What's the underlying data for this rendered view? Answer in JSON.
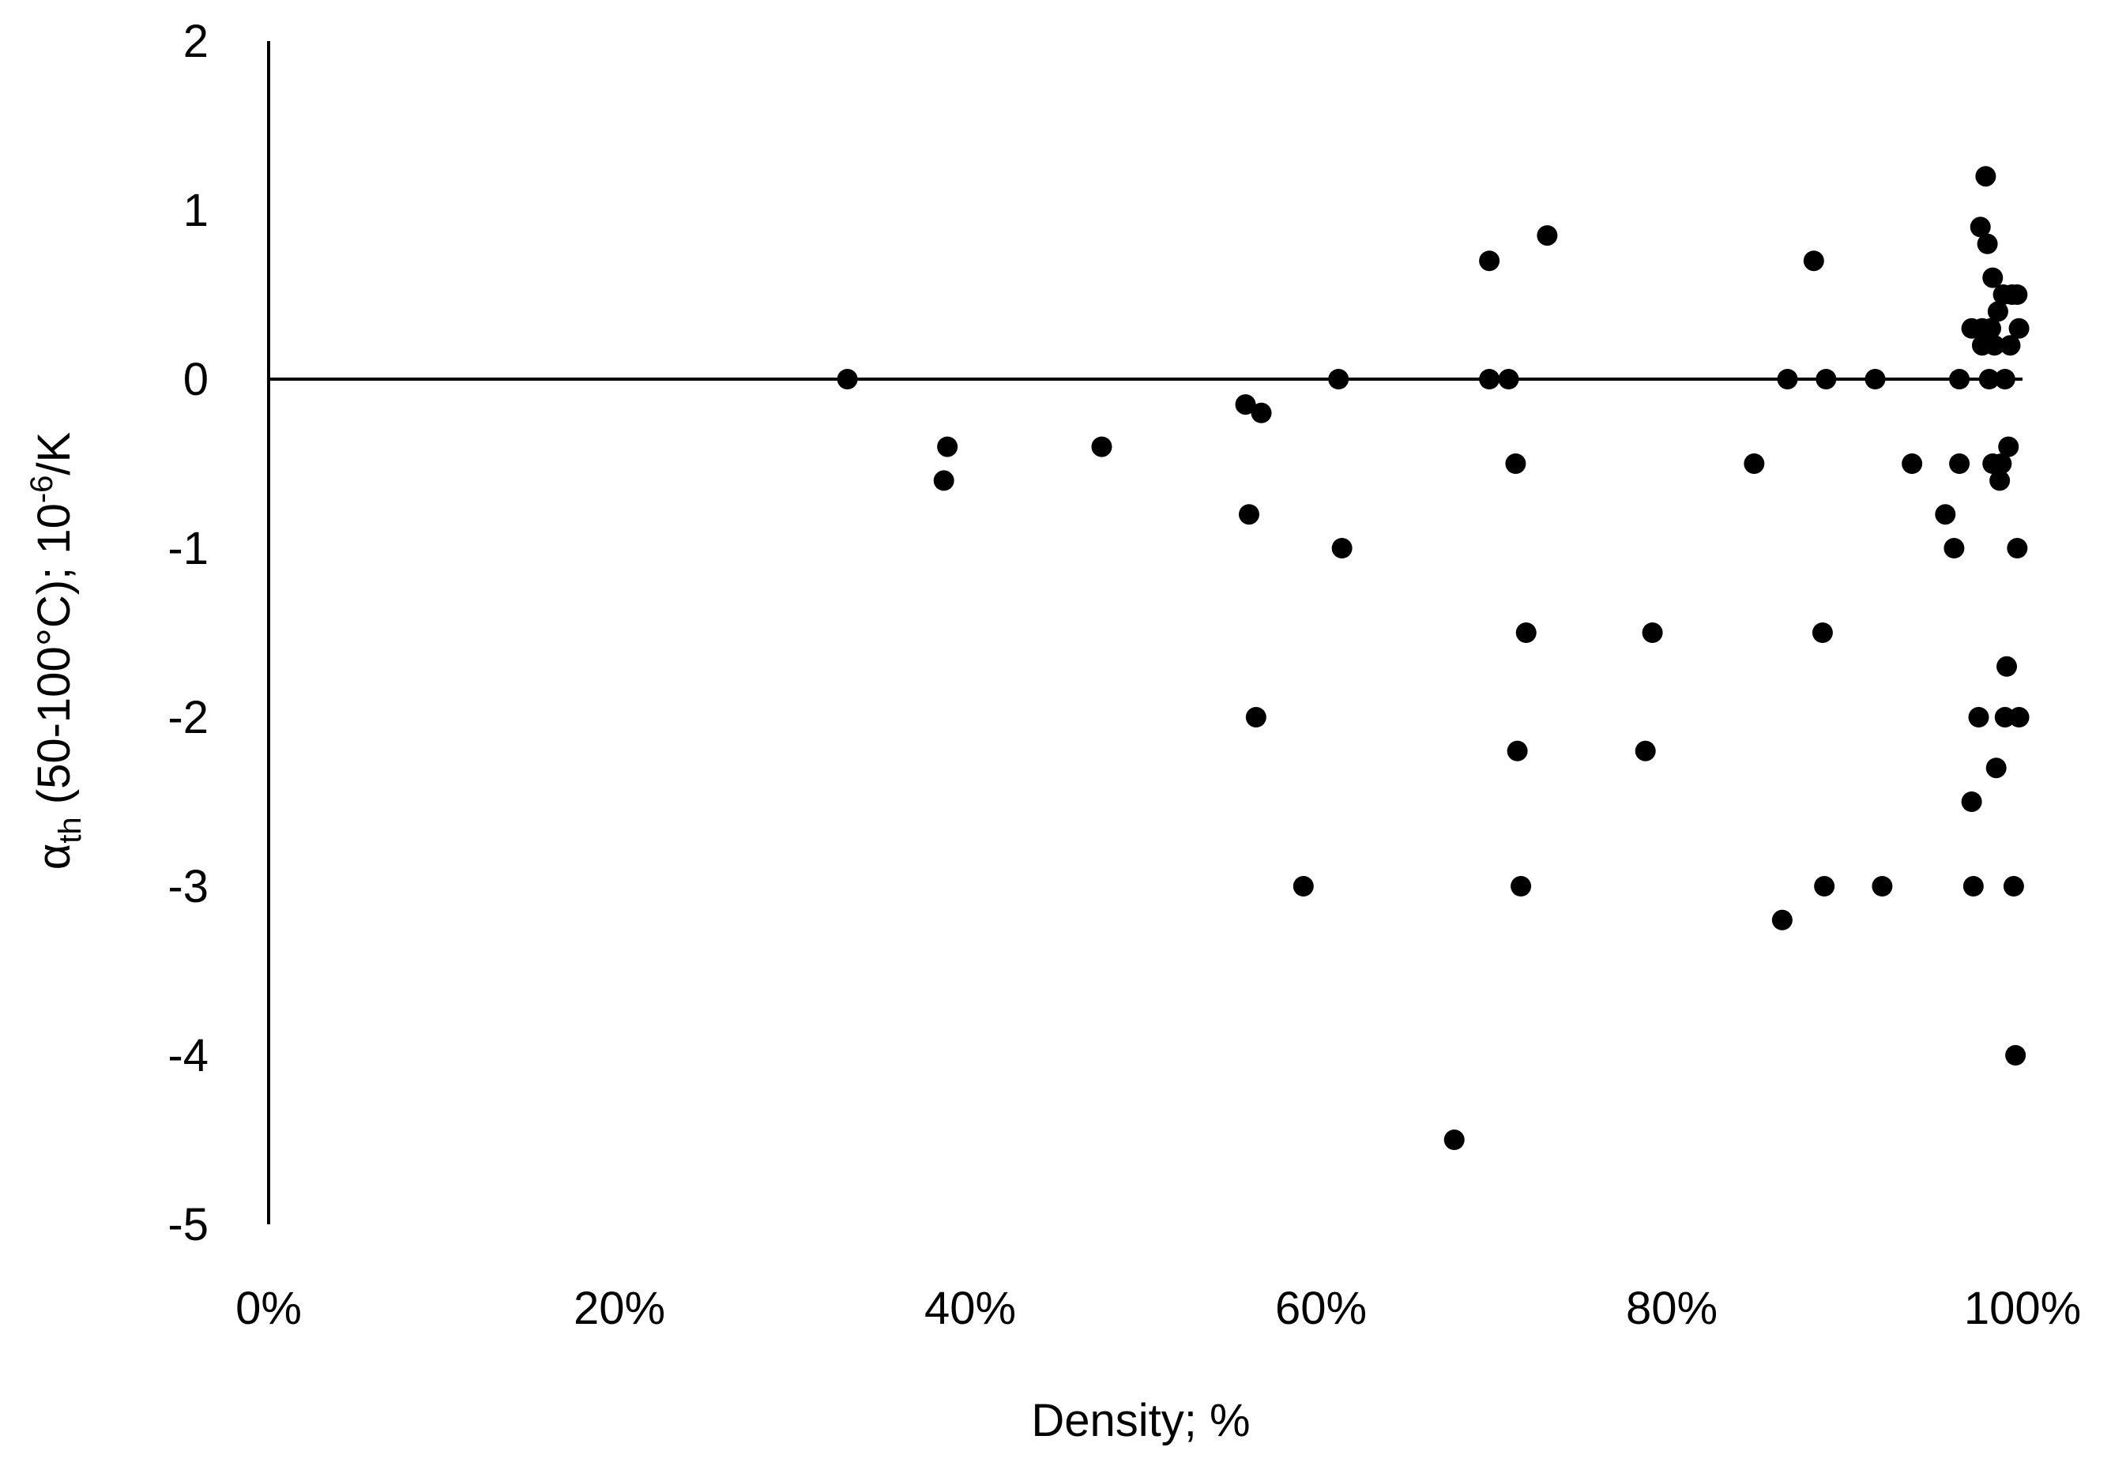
{
  "chart_data": {
    "type": "scatter",
    "title": "",
    "xlabel": "Density; %",
    "ylabel": {
      "symbol": "α",
      "subscript": "th",
      "text": " (50-100°C); 10",
      "exponent": "-6",
      "unit": "/K"
    },
    "xlim": [
      0,
      100
    ],
    "ylim": [
      -5,
      2
    ],
    "x_ticks": [
      "0%",
      "20%",
      "40%",
      "60%",
      "80%",
      "100%"
    ],
    "y_ticks": [
      "2",
      "1",
      "0",
      "-1",
      "-2",
      "-3",
      "-4",
      "-5"
    ],
    "grid": false,
    "legend": "none",
    "marker_color": "#000000",
    "series": [
      {
        "points": [
          [
            33,
            0
          ],
          [
            38.5,
            -0.6
          ],
          [
            38.7,
            -0.4
          ],
          [
            47.5,
            -0.4
          ],
          [
            55.7,
            -0.15
          ],
          [
            55.9,
            -0.8
          ],
          [
            56.3,
            -2.0
          ],
          [
            56.6,
            -0.2
          ],
          [
            59,
            -3.0
          ],
          [
            61,
            0
          ],
          [
            61.2,
            -1.0
          ],
          [
            67.6,
            -4.5
          ],
          [
            69.6,
            0.7
          ],
          [
            69.6,
            0
          ],
          [
            70.7,
            0
          ],
          [
            71.1,
            -0.5
          ],
          [
            71.2,
            -2.2
          ],
          [
            71.4,
            -3.0
          ],
          [
            71.7,
            -1.5
          ],
          [
            72.9,
            0.85
          ],
          [
            78.5,
            -2.2
          ],
          [
            78.9,
            -1.5
          ],
          [
            84.7,
            -0.5
          ],
          [
            86.3,
            -3.2
          ],
          [
            86.6,
            0
          ],
          [
            88.1,
            0.7
          ],
          [
            88.6,
            -1.5
          ],
          [
            88.7,
            -3.0
          ],
          [
            88.8,
            0
          ],
          [
            91.6,
            0
          ],
          [
            92,
            -3.0
          ],
          [
            93.7,
            -0.5
          ],
          [
            95.6,
            -0.8
          ],
          [
            96.1,
            -1.0
          ],
          [
            96.4,
            0
          ],
          [
            96.4,
            -0.5
          ],
          [
            97.1,
            -2.5
          ],
          [
            97.1,
            0.3
          ],
          [
            97.2,
            -3.0
          ],
          [
            97.5,
            -2.0
          ],
          [
            97.6,
            0.9
          ],
          [
            97.7,
            0.3
          ],
          [
            97.7,
            0.2
          ],
          [
            97.9,
            1.2
          ],
          [
            98.0,
            0.8
          ],
          [
            98.1,
            0
          ],
          [
            98.2,
            0.3
          ],
          [
            98.3,
            0.6
          ],
          [
            98.3,
            -0.5
          ],
          [
            98.4,
            0.2
          ],
          [
            98.5,
            -2.3
          ],
          [
            98.6,
            0.4
          ],
          [
            98.7,
            -0.6
          ],
          [
            98.8,
            -0.5
          ],
          [
            98.9,
            0.5
          ],
          [
            99.0,
            -2.0
          ],
          [
            99.0,
            0
          ],
          [
            99.1,
            -1.7
          ],
          [
            99.2,
            -0.4
          ],
          [
            99.3,
            0.2
          ],
          [
            99.4,
            0.5
          ],
          [
            99.5,
            -3.0
          ],
          [
            99.7,
            0.5
          ],
          [
            99.8,
            -2.0
          ],
          [
            99.6,
            -4.0
          ],
          [
            99.7,
            -1.0
          ],
          [
            99.8,
            0.3
          ]
        ]
      }
    ]
  }
}
